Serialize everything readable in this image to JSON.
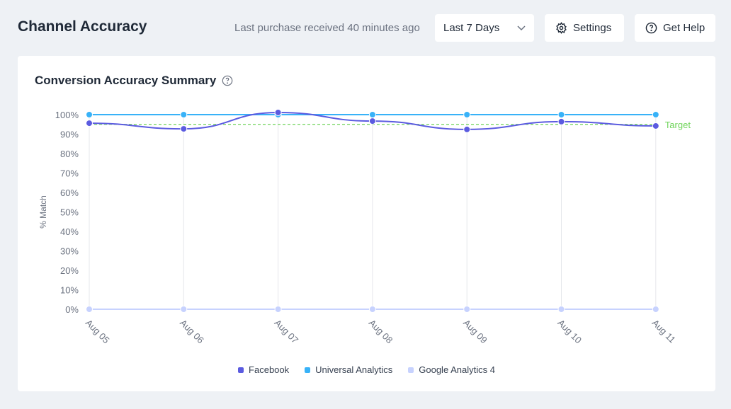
{
  "header": {
    "title": "Channel Accuracy",
    "status": "Last purchase received 40 minutes ago",
    "range_select": "Last 7 Days",
    "settings_label": "Settings",
    "help_label": "Get Help"
  },
  "card": {
    "title": "Conversion Accuracy Summary"
  },
  "chart_data": {
    "type": "line",
    "title": "Conversion Accuracy Summary",
    "ylabel": "% Match",
    "xlabel": "",
    "ylim": [
      0,
      100
    ],
    "yticks": [
      "0%",
      "10%",
      "20%",
      "30%",
      "40%",
      "50%",
      "60%",
      "70%",
      "80%",
      "90%",
      "100%"
    ],
    "categories": [
      "Aug 05",
      "Aug 06",
      "Aug 07",
      "Aug 08",
      "Aug 09",
      "Aug 10",
      "Aug 11"
    ],
    "series": [
      {
        "name": "Facebook",
        "color": "#5b5be0",
        "values": [
          95.6,
          92.7,
          101.1,
          96.7,
          92.4,
          96.4,
          94.2
        ]
      },
      {
        "name": "Universal Analytics",
        "color": "#38b2f8",
        "values": [
          100,
          100,
          100,
          100,
          100,
          100,
          100
        ]
      },
      {
        "name": "Google Analytics 4",
        "color": "#c7d2fe",
        "values": [
          0,
          0,
          0,
          0,
          0,
          0,
          0
        ]
      }
    ],
    "target": {
      "label": "Target",
      "value": 95,
      "color": "#6fd45a"
    },
    "legend_position": "bottom"
  }
}
